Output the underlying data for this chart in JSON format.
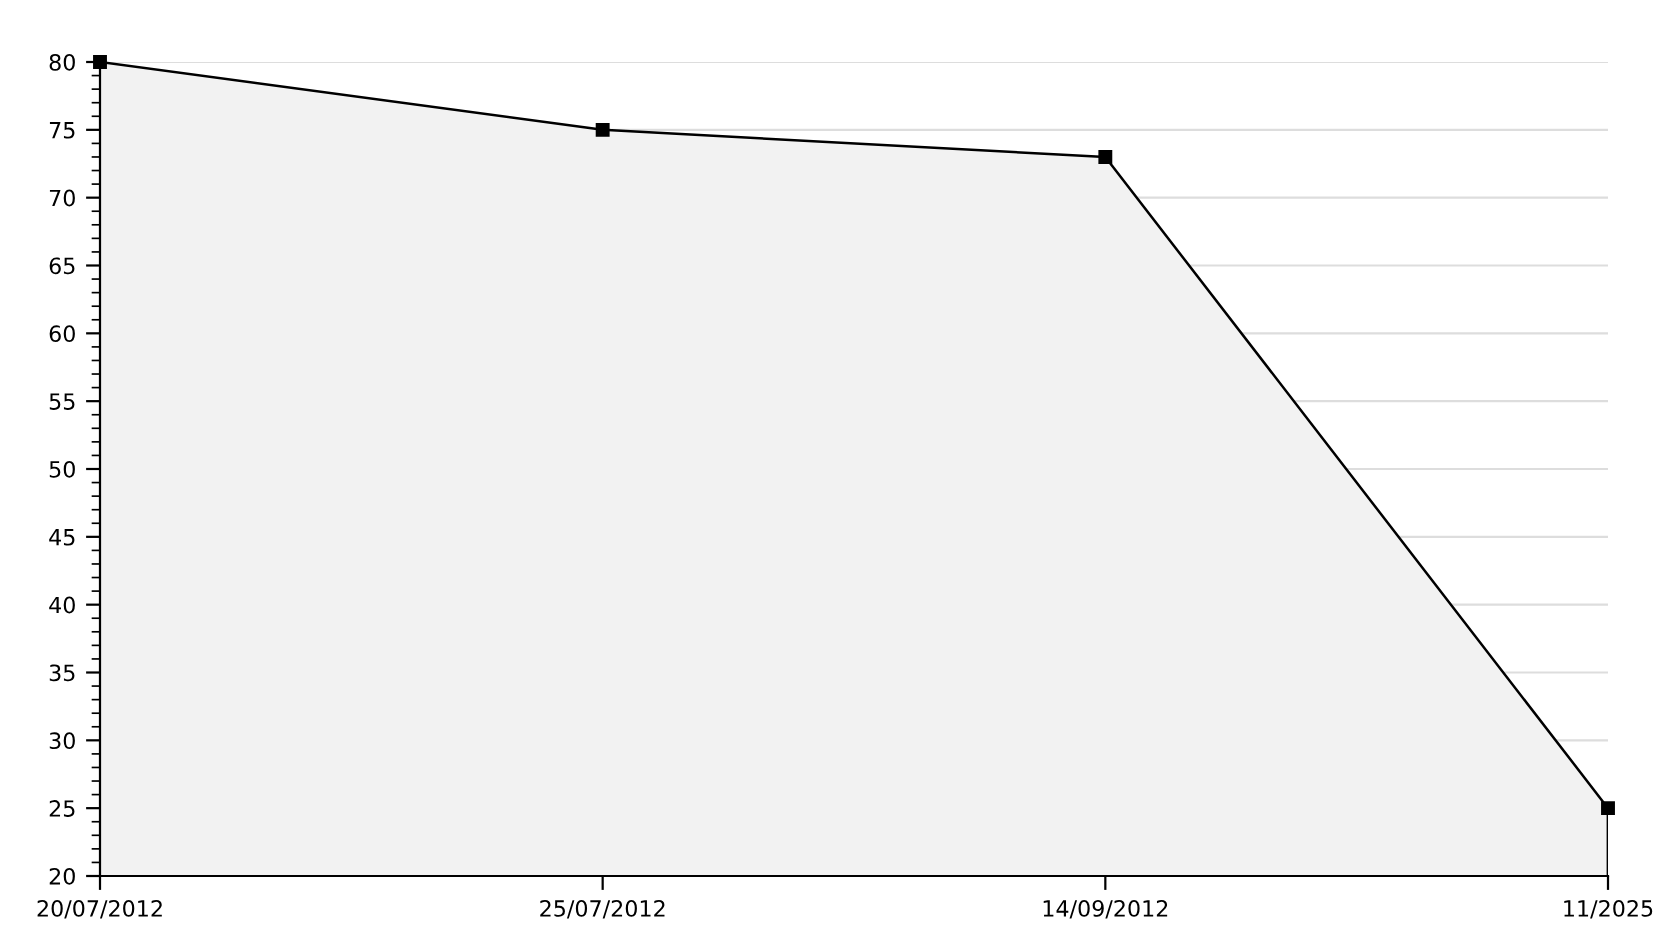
{
  "chart_data": {
    "type": "area",
    "categories": [
      "20/07/2012",
      "25/07/2012",
      "14/09/2012",
      "11/2025"
    ],
    "series": [
      {
        "color": "#000000",
        "values": [
          80,
          75,
          73,
          25
        ]
      }
    ],
    "ylim": [
      20,
      80
    ],
    "yticks": [
      20,
      25,
      30,
      35,
      40,
      45,
      50,
      55,
      60,
      65,
      70,
      75,
      80
    ],
    "grid": "y",
    "legend": false,
    "marker": "square",
    "line_style": "solid"
  }
}
